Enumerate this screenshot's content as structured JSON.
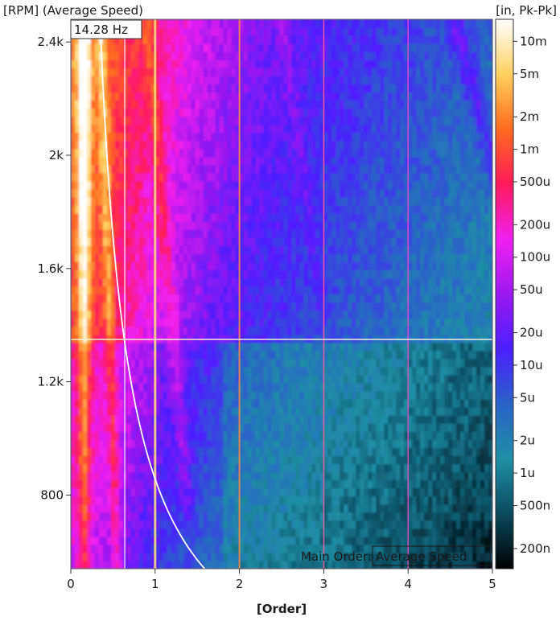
{
  "chart_data": {
    "type": "heatmap",
    "title": "",
    "xlabel": "[Order]",
    "ylabel": "[RPM] (Average Speed)",
    "colorbar_label": "[in, Pk-Pk]",
    "xlim": [
      0,
      5
    ],
    "ylim": [
      540,
      2480
    ],
    "x_ticks": [
      0,
      1,
      2,
      3,
      4,
      5
    ],
    "x_tick_labels": [
      "0",
      "1",
      "2",
      "3",
      "4",
      "5"
    ],
    "y_ticks": [
      800,
      1200,
      1600,
      2000,
      2400
    ],
    "y_tick_labels": [
      "800",
      "1.2k",
      "1.6k",
      "2k",
      "2.4k"
    ],
    "colorbar_scale": "log",
    "colorbar_ticks": [
      2e-07,
      5e-07,
      1e-06,
      2e-06,
      5e-06,
      1e-05,
      2e-05,
      5e-05,
      0.0001,
      0.0002,
      0.0005,
      0.001,
      0.002,
      0.005,
      0.01
    ],
    "colorbar_tick_labels": [
      "200n",
      "500n",
      "1u",
      "2u",
      "5u",
      "10u",
      "20u",
      "50u",
      "100u",
      "200u",
      "500u",
      "1m",
      "2m",
      "5m",
      "10m"
    ],
    "colormap": [
      "#000000",
      "#0a4a5e",
      "#1f8fa6",
      "#2a62c8",
      "#4b1fff",
      "#9b18f0",
      "#f020f0",
      "#ff1a5a",
      "#ff6a20",
      "#ffd060",
      "#ffffff"
    ],
    "cursor": {
      "rpm": 1350,
      "frequency_label": "14.28 Hz"
    },
    "main_order_label": "Main Order:",
    "main_order_value": "Average Speed",
    "grid": false,
    "legend": "colorbar-right"
  }
}
